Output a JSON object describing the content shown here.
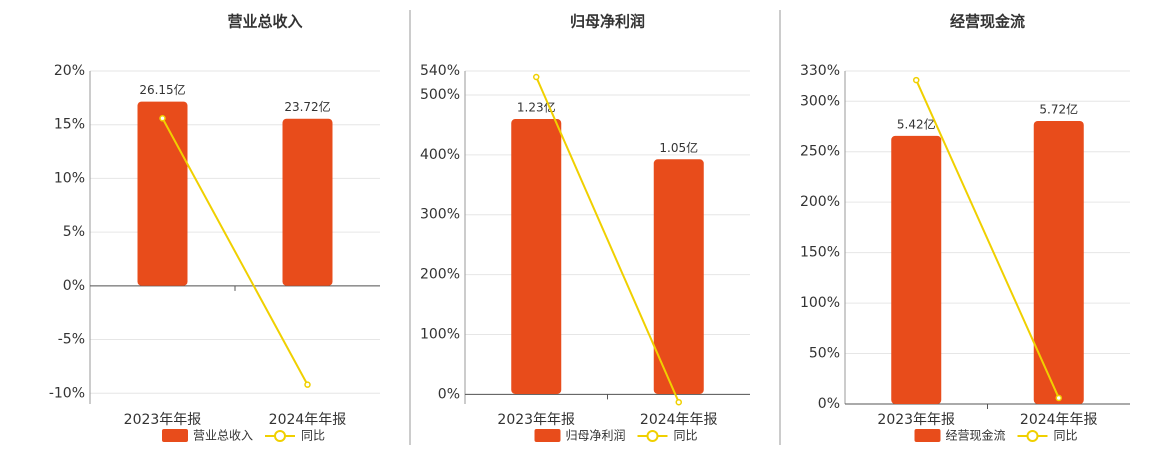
{
  "chart_data": [
    {
      "type": "bar",
      "title": "营业总收入",
      "categories": [
        "2023年年报",
        "2024年年报"
      ],
      "series": [
        {
          "name": "营业总收入",
          "color": "#e84c1b",
          "values": [
            26.15,
            23.72
          ],
          "value_labels": [
            "26.15亿",
            "23.72亿"
          ],
          "axis": "y2"
        },
        {
          "name": "同比",
          "type": "line",
          "color": "#f0d000",
          "values": [
            15.6,
            -9.2
          ]
        }
      ],
      "ylim": [
        -11,
        20
      ],
      "yticks": [
        {
          "value": -10,
          "label": "-10%"
        },
        {
          "value": -5,
          "label": "-5%"
        },
        {
          "value": 0,
          "label": "0%"
        },
        {
          "value": 5,
          "label": "5%"
        },
        {
          "value": 10,
          "label": "10%"
        },
        {
          "value": 15,
          "label": "15%"
        },
        {
          "value": 20,
          "label": "20%"
        }
      ],
      "y2lim": [
        -16.8,
        30.5
      ],
      "grid": true
    },
    {
      "type": "bar",
      "title": "归母净利润",
      "categories": [
        "2023年年报",
        "2024年年报"
      ],
      "series": [
        {
          "name": "归母净利润",
          "color": "#e84c1b",
          "values": [
            1.23,
            1.05
          ],
          "value_labels": [
            "1.23亿",
            "1.05亿"
          ],
          "axis": "y2"
        },
        {
          "name": "同比",
          "type": "line",
          "color": "#f0d000",
          "values": [
            530,
            -13
          ]
        }
      ],
      "ylim": [
        -16,
        540
      ],
      "yticks": [
        {
          "value": 0,
          "label": "0%"
        },
        {
          "value": 100,
          "label": "100%"
        },
        {
          "value": 200,
          "label": "200%"
        },
        {
          "value": 300,
          "label": "300%"
        },
        {
          "value": 400,
          "label": "400%"
        },
        {
          "value": 500,
          "label": "500%"
        },
        {
          "value": 540,
          "label": "540%"
        }
      ],
      "y2lim": [
        -0.045,
        1.445
      ],
      "grid": true
    },
    {
      "type": "bar",
      "title": "经营现金流",
      "categories": [
        "2023年年报",
        "2024年年报"
      ],
      "series": [
        {
          "name": "经营现金流",
          "color": "#e84c1b",
          "values": [
            5.42,
            5.72
          ],
          "value_labels": [
            "5.42亿",
            "5.72亿"
          ],
          "axis": "y2"
        },
        {
          "name": "同比",
          "type": "line",
          "color": "#f0d000",
          "values": [
            321,
            6
          ]
        }
      ],
      "ylim": [
        0,
        330
      ],
      "yticks": [
        {
          "value": 0,
          "label": "0%"
        },
        {
          "value": 50,
          "label": "50%"
        },
        {
          "value": 100,
          "label": "100%"
        },
        {
          "value": 150,
          "label": "150%"
        },
        {
          "value": 200,
          "label": "200%"
        },
        {
          "value": 250,
          "label": "250%"
        },
        {
          "value": 300,
          "label": "300%"
        },
        {
          "value": 330,
          "label": "330%"
        }
      ],
      "y2lim": [
        0,
        6.73
      ],
      "grid": true
    }
  ]
}
